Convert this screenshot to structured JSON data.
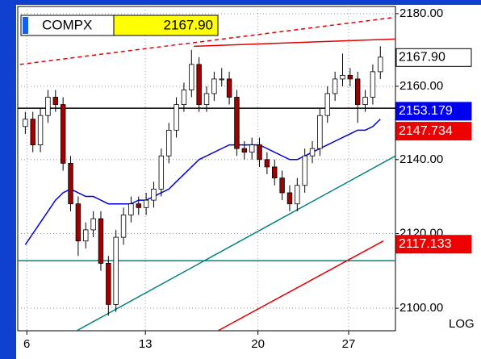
{
  "chart_data": {
    "type": "candlestick",
    "symbol": "COMPX",
    "quote": "2167.90",
    "axis_mode_label": "LOG",
    "log_scale": true,
    "grid": true,
    "xlim": [
      -1,
      49
    ],
    "ylim": [
      2094,
      2182
    ],
    "xticks": [
      {
        "value": 0.2,
        "label": "6"
      },
      {
        "value": 15.9,
        "label": "13"
      },
      {
        "value": 30.8,
        "label": "20"
      },
      {
        "value": 42.8,
        "label": "27"
      }
    ],
    "yticks": [
      {
        "value": 2100,
        "label": "2100.00"
      },
      {
        "value": 2120,
        "label": "2120.00"
      },
      {
        "value": 2140,
        "label": "2140.00"
      },
      {
        "value": 2160,
        "label": "2160.00"
      },
      {
        "value": 2180,
        "label": "2180.00"
      }
    ],
    "up_color": "#ffffff",
    "down_color": "#a00000",
    "open": [
      2149,
      2151,
      2144,
      2152,
      2157,
      2155,
      2139,
      2128,
      2118,
      2121,
      2124,
      2112,
      2101,
      2119,
      2125,
      2128,
      2127,
      2129,
      2132,
      2141,
      2148,
      2155,
      2159,
      2166,
      2155,
      2158,
      2162,
      2162,
      2157,
      2143,
      2142,
      2144,
      2140,
      2138,
      2135,
      2131,
      2128,
      2133,
      2141,
      2143,
      2152,
      2158,
      2162,
      2163,
      2162,
      2155,
      2157,
      2164
    ],
    "high": [
      2153,
      2153,
      2154,
      2159,
      2159,
      2157,
      2141,
      2130,
      2123,
      2126,
      2126,
      2114,
      2121,
      2127,
      2130,
      2130,
      2131,
      2134,
      2143,
      2150,
      2157,
      2161,
      2170,
      2168,
      2160,
      2164,
      2165,
      2164,
      2159,
      2145,
      2146,
      2146,
      2142,
      2140,
      2137,
      2133,
      2135,
      2143,
      2145,
      2154,
      2160,
      2164,
      2169,
      2165,
      2164,
      2159,
      2166,
      2171
    ],
    "low": [
      2147,
      2142,
      2142,
      2150,
      2153,
      2137,
      2126,
      2114,
      2116,
      2119,
      2110,
      2098,
      2099,
      2117,
      2123,
      2125,
      2125,
      2127,
      2130,
      2139,
      2146,
      2153,
      2157,
      2153,
      2153,
      2156,
      2160,
      2155,
      2141,
      2140,
      2140,
      2138,
      2136,
      2133,
      2129,
      2126,
      2126,
      2131,
      2139,
      2141,
      2150,
      2156,
      2160,
      2160,
      2150,
      2153,
      2155,
      2162
    ],
    "close": [
      2151,
      2144,
      2152,
      2157,
      2155,
      2139,
      2128,
      2118,
      2121,
      2124,
      2112,
      2101,
      2119,
      2125,
      2128,
      2127,
      2129,
      2132,
      2141,
      2148,
      2155,
      2159,
      2166,
      2155,
      2158,
      2162,
      2162,
      2157,
      2143,
      2142,
      2144,
      2140,
      2138,
      2135,
      2131,
      2128,
      2133,
      2141,
      2143,
      2152,
      2158,
      2162,
      2163,
      2162,
      2155,
      2157,
      2164,
      2168
    ],
    "overlays": [
      {
        "color": "#0000dd",
        "values": [
          2117,
          2120,
          2123,
          2126,
          2129,
          2131,
          2132,
          2131,
          2130,
          2130,
          2129,
          2128,
          2128,
          2128,
          2128,
          2129,
          2129,
          2130,
          2131,
          2132,
          2134,
          2136,
          2138,
          2140,
          2141,
          2142,
          2143,
          2144,
          2144,
          2144,
          2144,
          2144,
          2143,
          2142,
          2141,
          2140,
          2140,
          2141,
          2142,
          2143,
          2144,
          2145,
          2146,
          2147,
          2148,
          2148,
          2149,
          2151
        ]
      }
    ],
    "lines": [
      {
        "color": "#008080",
        "dash": false,
        "x": [
          6.8,
          49
        ],
        "values": [
          2094,
          2141
        ]
      },
      {
        "color": "#008080",
        "dash": false,
        "x": [
          -1,
          49
        ],
        "values": [
          2112.7,
          2112.7
        ]
      },
      {
        "color": "#e00000",
        "dash": false,
        "x": [
          25.5,
          47.4
        ],
        "values": [
          2094,
          2118
        ]
      },
      {
        "color": "#e00000",
        "dash": false,
        "x": [
          22.3,
          49
        ],
        "values": [
          2171,
          2173
        ]
      },
      {
        "color": "#e00000",
        "dash": true,
        "x": [
          -0.7,
          49
        ],
        "values": [
          2166,
          2179
        ]
      },
      {
        "color": "#000000",
        "dash": false,
        "x": [
          -1,
          49
        ],
        "values": [
          2154,
          2154
        ]
      }
    ],
    "price_labels": [
      {
        "value": 2167.9,
        "label": "2167.90",
        "color": "#ffffff",
        "text_color": "#000000"
      },
      {
        "value": 2153.179,
        "label": "2153.179",
        "color": "#0000ee",
        "text_color": "#ffffff"
      },
      {
        "value": 2147.734,
        "label": "2147.734",
        "color": "#ee0000",
        "text_color": "#ffffff"
      },
      {
        "value": 2117.133,
        "label": "2117.133",
        "color": "#ee0000",
        "text_color": "#ffffff"
      }
    ]
  }
}
